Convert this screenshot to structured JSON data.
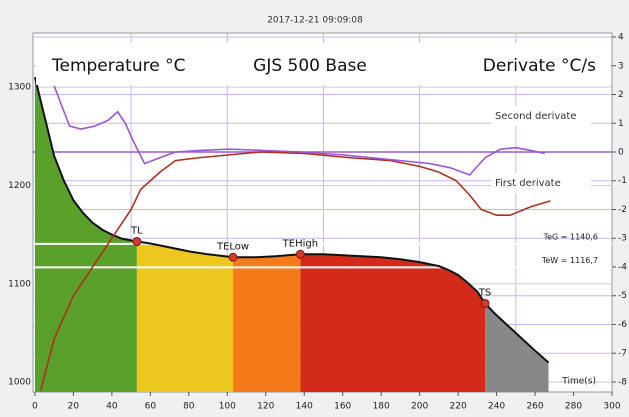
{
  "chart_data": {
    "type": "line",
    "timestamp": "2017-12-21  09:09:08",
    "title": "GJS 500 Base",
    "ylabel": "Temperature °C",
    "y2label": "Derivate °C/s",
    "xlabel": "Time(s)",
    "xlim": [
      -1,
      300
    ],
    "xticks": [
      0,
      20,
      40,
      60,
      80,
      100,
      120,
      140,
      160,
      180,
      200,
      220,
      240,
      260,
      280,
      300
    ],
    "xgrid": [
      50,
      100,
      150,
      200,
      250
    ],
    "ylim": [
      990,
      1355
    ],
    "yticks": [
      1000,
      1100,
      1200,
      1300
    ],
    "y2lim": [
      -8.35,
      4.14
    ],
    "y2ticks": [
      4,
      3,
      2,
      1,
      0,
      -1,
      -2,
      -3,
      -4,
      -5,
      -6,
      -7,
      -8
    ],
    "series": [
      {
        "color": "#111111",
        "axis": "y",
        "x": [
          0,
          5,
          10,
          15,
          20,
          25,
          30,
          35,
          40,
          45,
          53,
          60,
          70,
          80,
          90,
          103,
          115,
          125,
          138,
          150,
          160,
          170,
          180,
          190,
          200,
          210,
          215,
          220,
          225,
          230,
          234,
          240,
          250,
          260,
          267
        ],
        "values": [
          1310,
          1270,
          1230,
          1205,
          1185,
          1172,
          1162,
          1155,
          1150,
          1146,
          1143,
          1141,
          1137,
          1133,
          1130,
          1127,
          1127,
          1128,
          1130,
          1130,
          1129,
          1128,
          1127,
          1125,
          1122,
          1118,
          1114,
          1109,
          1101,
          1092,
          1080,
          1068,
          1050,
          1032,
          1020
        ]
      },
      {
        "name": "First derivate",
        "color": "#b0301e",
        "axis": "y2",
        "x": [
          3,
          10,
          20,
          30,
          40,
          50,
          55,
          65,
          73,
          85,
          101,
          117,
          140,
          164,
          185,
          200,
          210,
          219,
          226,
          232,
          240,
          247,
          258,
          268
        ],
        "values": [
          -8.3,
          -6.5,
          -5.0,
          -4.0,
          -3.0,
          -2.0,
          -1.3,
          -0.7,
          -0.3,
          -0.2,
          -0.1,
          0,
          -0.05,
          -0.2,
          -0.3,
          -0.5,
          -0.7,
          -1.0,
          -1.5,
          -2.0,
          -2.2,
          -2.2,
          -1.9,
          -1.7
        ]
      },
      {
        "name": "Second derivate",
        "color": "#9b55d6",
        "axis": "y2",
        "x": [
          10,
          14,
          18,
          24,
          31,
          38,
          43,
          47,
          51,
          57,
          65,
          73,
          85,
          101,
          120,
          138,
          160,
          190,
          205,
          216,
          226,
          234,
          242,
          250,
          258,
          265
        ],
        "values": [
          2.3,
          1.6,
          0.9,
          0.8,
          0.9,
          1.1,
          1.4,
          1.0,
          0.4,
          -0.4,
          -0.2,
          0,
          0.05,
          0.1,
          0.05,
          0,
          -0.1,
          -0.3,
          -0.4,
          -0.55,
          -0.8,
          -0.2,
          0.1,
          0.15,
          0.05,
          -0.05
        ]
      }
    ],
    "phases": [
      {
        "start": 0,
        "end": 53,
        "color": "#5aa12c"
      },
      {
        "start": 53,
        "end": 103,
        "color": "#ecc81e"
      },
      {
        "start": 103,
        "end": 138,
        "color": "#f47a1a"
      },
      {
        "start": 138,
        "end": 234,
        "color": "#d42a1a"
      },
      {
        "start": 234,
        "end": 267,
        "color": "#888888"
      }
    ],
    "points": [
      {
        "label": "TL",
        "t": 53,
        "temp": 1143
      },
      {
        "label": "TELow",
        "t": 103,
        "temp": 1127
      },
      {
        "label": "TEHigh",
        "t": 138,
        "temp": 1130
      },
      {
        "label": "TS",
        "t": 234,
        "temp": 1080
      }
    ],
    "reference_lines": [
      {
        "label": "TeG = 1140,6",
        "value": 1140.6
      },
      {
        "label": "TeW = 1116,7",
        "value": 1116.7
      }
    ]
  }
}
